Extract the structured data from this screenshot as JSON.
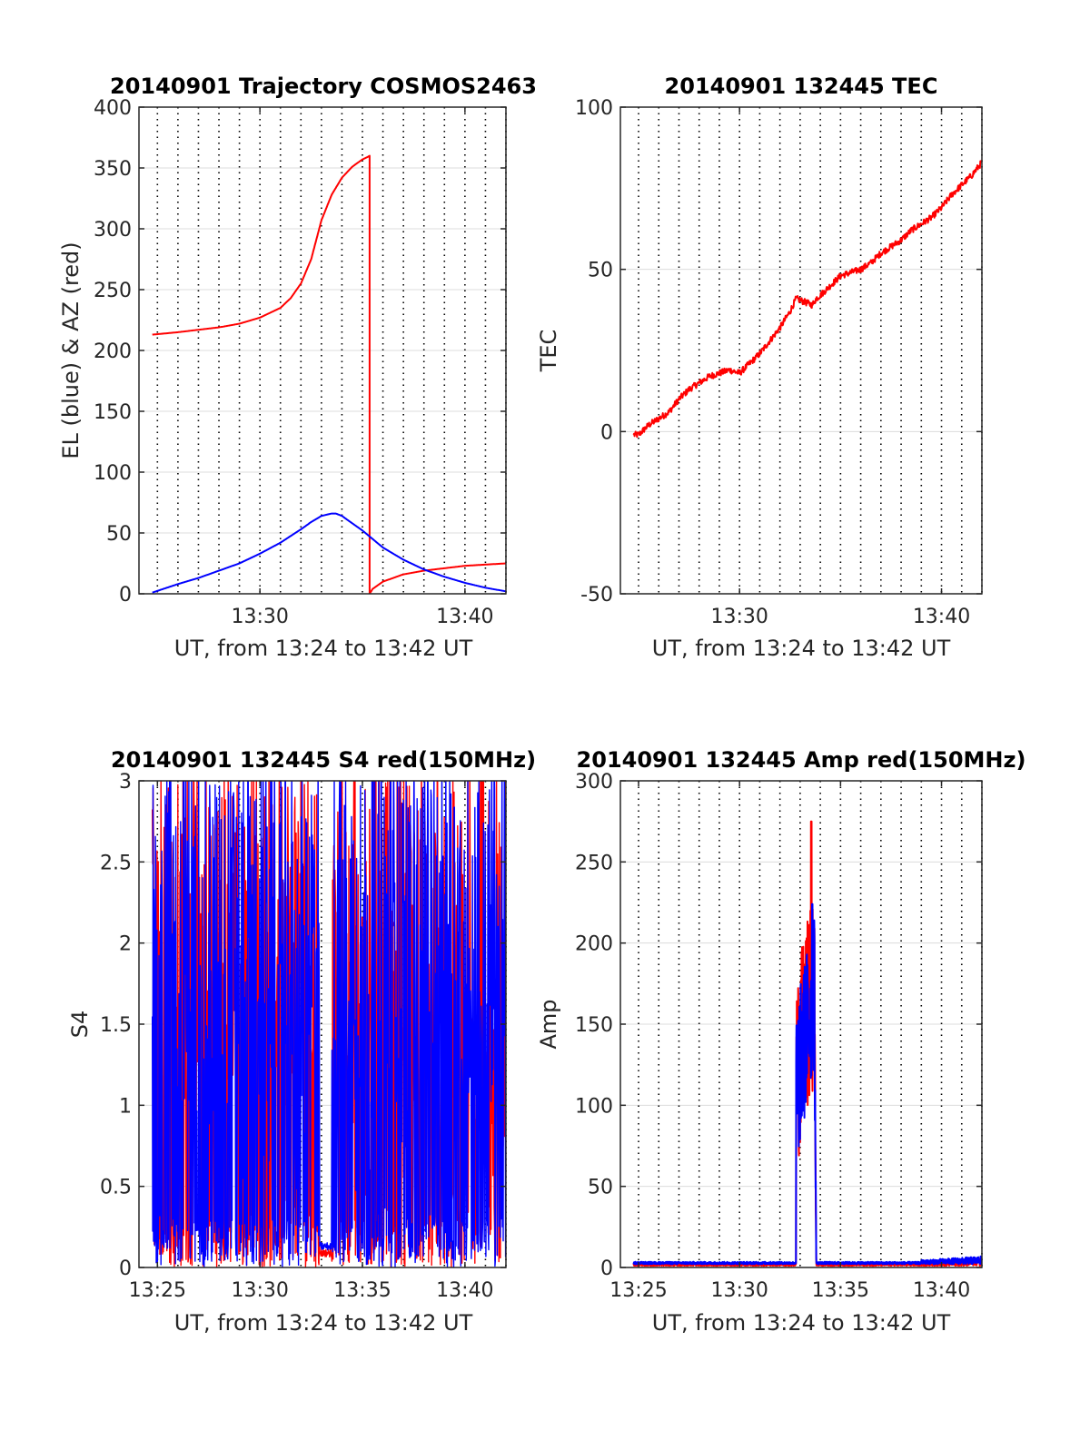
{
  "figure": {
    "background": "#ffffff",
    "colors": {
      "red": "#ff0000",
      "blue": "#0000ff",
      "grid_dotted": "#000000",
      "grid_solid": "#dcdcdc"
    }
  },
  "chart_data": [
    {
      "id": "traj",
      "type": "line",
      "title": "20140901 Trajectory COSMOS2463",
      "xlabel": "UT, from 13:24 to 13:42 UT",
      "ylabel": "EL (blue) & AZ (red)",
      "x_unit": "minutes past 13:00 UT",
      "xlim": [
        24.1,
        42
      ],
      "ylim": [
        0,
        400
      ],
      "xticks": [
        30,
        40
      ],
      "xticklabels": [
        "13:30",
        "13:40"
      ],
      "yticks": [
        0,
        50,
        100,
        150,
        200,
        250,
        300,
        350,
        400
      ],
      "yticklabels": [
        "0",
        "50",
        "100",
        "150",
        "200",
        "250",
        "300",
        "350",
        "400"
      ],
      "grid": "x dotted at every minute, y solid light gray",
      "series": [
        {
          "color": "#ff0000",
          "x": [
            24.75,
            26,
            27,
            28,
            29,
            30,
            31,
            31.5,
            32,
            32.5,
            33,
            33.5,
            34,
            34.5,
            35,
            35.25,
            35.35,
            35.35,
            35.5,
            36,
            37,
            38,
            39,
            40,
            41,
            42
          ],
          "y": [
            213,
            215,
            217,
            219,
            222,
            227,
            235,
            243,
            255,
            275,
            307,
            328,
            342,
            351,
            357,
            359,
            360,
            0,
            4,
            10,
            16,
            19,
            21,
            23,
            24,
            25
          ]
        },
        {
          "color": "#0000ff",
          "x": [
            24.75,
            26,
            27,
            28,
            29,
            30,
            31,
            32,
            32.5,
            33,
            33.5,
            33.7,
            34,
            34.5,
            35,
            35.5,
            36,
            37,
            38,
            39,
            40,
            41,
            42
          ],
          "y": [
            1,
            8,
            13,
            19,
            25,
            33,
            42,
            53,
            59,
            64,
            66,
            66,
            64,
            58,
            52,
            45,
            38,
            28,
            20,
            14,
            9,
            5,
            2
          ]
        }
      ]
    },
    {
      "id": "tec",
      "type": "line",
      "title": "20140901 132445 TEC",
      "xlabel": "UT, from 13:24 to 13:42 UT",
      "ylabel": "TEC",
      "x_unit": "minutes past 13:00 UT",
      "xlim": [
        24.1,
        42
      ],
      "ylim": [
        -50,
        100
      ],
      "xticks": [
        30,
        40
      ],
      "xticklabels": [
        "13:30",
        "13:40"
      ],
      "yticks": [
        -50,
        0,
        50,
        100
      ],
      "yticklabels": [
        "-50",
        "0",
        "50",
        "100"
      ],
      "grid": "x dotted at every minute, y solid light gray",
      "series": [
        {
          "color": "#ff0000",
          "noise": 1,
          "x": [
            24.75,
            25,
            25.5,
            26,
            26.5,
            27,
            27.5,
            28,
            28.5,
            29,
            29.5,
            30,
            30.5,
            31,
            31.5,
            32,
            32.5,
            32.8,
            33.2,
            33.6,
            33.8,
            34,
            34.5,
            35,
            35.5,
            36,
            36.5,
            37,
            37.5,
            38,
            38.5,
            39,
            39.5,
            40,
            40.5,
            41,
            41.5,
            42
          ],
          "y": [
            -1,
            -1,
            2,
            4,
            6,
            10,
            13,
            15,
            17,
            18,
            19,
            18,
            21,
            24,
            28,
            32,
            37,
            41,
            40,
            39,
            41,
            42,
            45,
            48,
            49,
            50,
            52,
            55,
            57,
            59,
            62,
            64,
            66,
            69,
            73,
            76,
            79,
            83
          ]
        }
      ]
    },
    {
      "id": "s4",
      "type": "line",
      "title": "20140901 132445 S4 red(150MHz)",
      "xlabel": "UT, from 13:24 to 13:42 UT",
      "ylabel": "S4",
      "x_unit": "minutes past 13:00 UT",
      "xlim": [
        24.1,
        42
      ],
      "ylim": [
        0,
        3
      ],
      "xticks": [
        25,
        30,
        35,
        40
      ],
      "xticklabels": [
        "13:25",
        "13:30",
        "13:35",
        "13:40"
      ],
      "yticks": [
        0,
        0.5,
        1,
        1.5,
        2,
        2.5,
        3
      ],
      "yticklabels": [
        "0",
        "0.5",
        "1",
        "1.5",
        "2",
        "2.5",
        "3"
      ],
      "grid": "x dotted at every minute, y solid light gray",
      "series": [
        {
          "color": "#ff0000",
          "x_start": 24.75,
          "x_end": 42,
          "quiet_window": [
            32.9,
            33.5
          ],
          "quiet_level": 0.09,
          "character": "dense oscillation between 0 and 3 (clipped)"
        },
        {
          "color": "#0000ff",
          "x_start": 24.75,
          "x_end": 42,
          "quiet_window": [
            32.9,
            33.5
          ],
          "quiet_level": 0.13,
          "character": "dense oscillation between 0 and 3 (clipped)"
        }
      ]
    },
    {
      "id": "amp",
      "type": "line",
      "title": "20140901 132445 Amp red(150MHz)",
      "xlabel": "UT, from 13:24 to 13:42 UT",
      "ylabel": "Amp",
      "x_unit": "minutes past 13:00 UT",
      "xlim": [
        24.1,
        42
      ],
      "ylim": [
        0,
        300
      ],
      "xticks": [
        25,
        30,
        35,
        40
      ],
      "xticklabels": [
        "13:25",
        "13:30",
        "13:35",
        "13:40"
      ],
      "yticks": [
        0,
        50,
        100,
        150,
        200,
        250,
        300
      ],
      "yticklabels": [
        "0",
        "50",
        "100",
        "150",
        "200",
        "250",
        "300"
      ],
      "grid": "x dotted at every minute, y solid light gray",
      "series": [
        {
          "color": "#ff0000",
          "baseline": 1,
          "burst_window": [
            32.8,
            33.8
          ],
          "burst_peak": 275,
          "burst_peak_x": 33.55
        },
        {
          "color": "#0000ff",
          "baseline": 2,
          "burst_window": [
            32.8,
            33.8
          ],
          "burst_peak": 224,
          "burst_peak_x": 33.6
        }
      ]
    }
  ]
}
